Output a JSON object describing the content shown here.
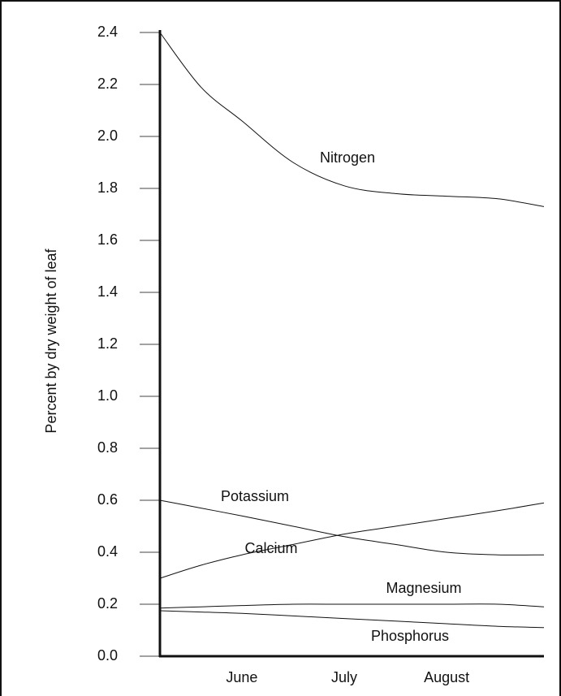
{
  "chart_data": {
    "type": "line",
    "ylabel": "Percent by dry weight of leaf",
    "x": [
      0.2,
      0.6,
      1,
      1.5,
      2,
      2.5,
      3,
      3.5,
      3.95
    ],
    "xlim": [
      0.2,
      3.95
    ],
    "xticks": [
      {
        "value": 1,
        "label": "June"
      },
      {
        "value": 2,
        "label": "July"
      },
      {
        "value": 3,
        "label": "August"
      }
    ],
    "ylim": [
      0,
      2.4
    ],
    "yticks": [
      {
        "value": 0,
        "label": "0.0"
      },
      0.2,
      0.4,
      0.6,
      0.8,
      {
        "value": 1,
        "label": "1.0"
      },
      1.2,
      1.4,
      1.6,
      1.8,
      {
        "value": 2,
        "label": "2.0"
      },
      2.2,
      2.4
    ],
    "series": [
      {
        "name": "Nitrogen",
        "color": "#111111",
        "values": [
          2.4,
          2.19,
          2.06,
          1.9,
          1.81,
          1.78,
          1.77,
          1.76,
          1.73
        ]
      },
      {
        "name": "Potassium",
        "color": "#111111",
        "values": [
          0.6,
          0.57,
          0.54,
          0.5,
          0.46,
          0.43,
          0.4,
          0.39,
          0.39
        ]
      },
      {
        "name": "Calcium",
        "color": "#111111",
        "values": [
          0.3,
          0.35,
          0.39,
          0.43,
          0.47,
          0.5,
          0.53,
          0.56,
          0.59
        ]
      },
      {
        "name": "Magnesium",
        "color": "#111111",
        "values": [
          0.185,
          0.19,
          0.195,
          0.2,
          0.2,
          0.2,
          0.2,
          0.2,
          0.19
        ]
      },
      {
        "name": "Phosphorus",
        "color": "#111111",
        "values": [
          0.175,
          0.17,
          0.165,
          0.155,
          0.145,
          0.135,
          0.125,
          0.115,
          0.11
        ]
      }
    ]
  }
}
